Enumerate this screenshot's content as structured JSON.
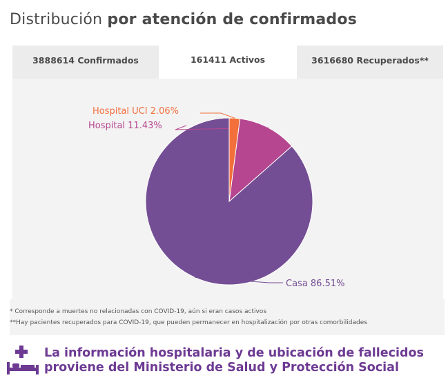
{
  "title": {
    "light": "Distribución",
    "bold": "por atención de confirmados"
  },
  "tabs": [
    {
      "label": "3888614 Confirmados",
      "active": false
    },
    {
      "label": "161411 Activos",
      "active": true
    },
    {
      "label": "3616680 Recuperados**",
      "active": false
    }
  ],
  "chart_data": {
    "type": "pie",
    "slices": [
      {
        "label": "Casa 86.51%",
        "value": 86.51,
        "color": "#744e94"
      },
      {
        "label": "Hospital 11.43%",
        "value": 11.43,
        "color": "#b5468f"
      },
      {
        "label": "Hospital UCI 2.06%",
        "value": 2.06,
        "color": "#f36f3c"
      }
    ]
  },
  "footnotes": [
    "* Corresponde a muertes no relacionadas con COVID-19, aún si eran casos activos",
    "**Hay pacientes recuperados para COVID-19, que pueden permanecer en hospitalización por otras comorbilidades"
  ],
  "banner": {
    "line1": "La información hospitalaria y de ubicación de fallecidos",
    "line2": "proviene del Ministerio de Salud y Protección Social",
    "icon": "hospital-bed-icon",
    "color": "#6d3a93"
  }
}
